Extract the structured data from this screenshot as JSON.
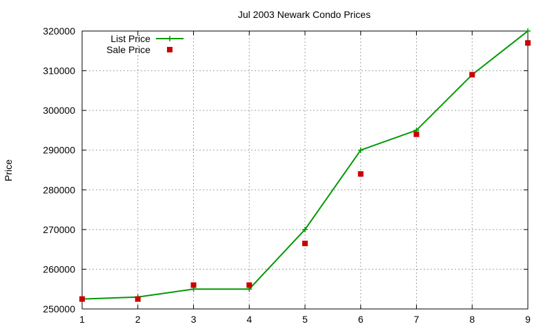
{
  "chart_data": {
    "type": "line",
    "title": "Jul 2003 Newark Condo Prices",
    "xlabel": "",
    "ylabel": "Price",
    "xlim": [
      1,
      9
    ],
    "ylim": [
      250000,
      320000
    ],
    "x_ticks": [
      1,
      2,
      3,
      4,
      5,
      6,
      7,
      8,
      9
    ],
    "y_ticks": [
      250000,
      260000,
      270000,
      280000,
      290000,
      300000,
      310000,
      320000
    ],
    "grid": true,
    "legend_position": "top-left",
    "x": [
      1,
      2,
      3,
      4,
      5,
      6,
      7,
      8,
      9
    ],
    "series": [
      {
        "name": "List Price",
        "style": "lines+points",
        "marker": "plus",
        "color": "#009900",
        "values": [
          252500,
          253000,
          255000,
          255000,
          270000,
          290000,
          295000,
          309000,
          320000
        ]
      },
      {
        "name": "Sale Price",
        "style": "points",
        "marker": "square",
        "color": "#cc0000",
        "values": [
          252500,
          252500,
          256000,
          256000,
          266500,
          284000,
          294000,
          309000,
          317000
        ]
      }
    ]
  }
}
